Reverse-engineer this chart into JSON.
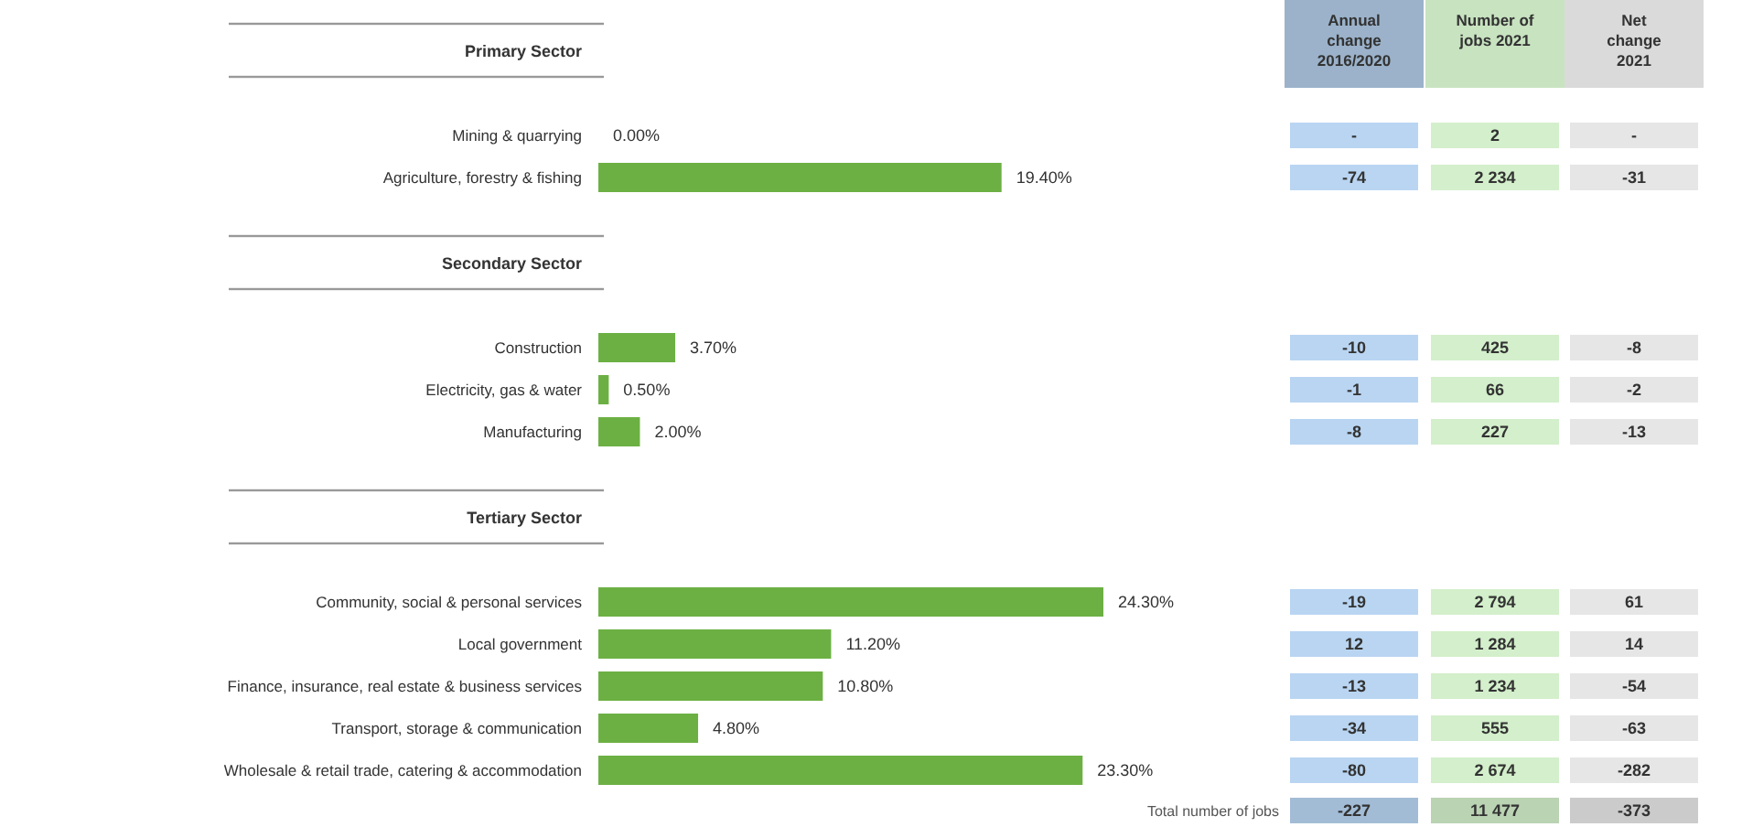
{
  "chart_data": [
    {
      "type": "bar",
      "orientation": "horizontal",
      "color": "#6cb044",
      "categories": [
        "Primary Sector",
        "Mining & quarrying",
        "Agriculture, forestry & fishing",
        "Secondary Sector",
        "Construction",
        "Electricity, gas & water",
        "Manufacturing",
        "Tertiary Sector",
        "Community, social & personal services",
        "Local government",
        "Finance, insurance, real estate & business services",
        "Transport, storage & communication",
        "Wholesale & retail trade, catering & accommodation"
      ],
      "values": [
        null,
        0,
        19.4,
        null,
        3.7,
        0.5,
        2.0,
        null,
        24.3,
        11.2,
        10.8,
        4.8,
        23.3
      ],
      "value_labels": [
        null,
        "0.00%",
        "19.40%",
        null,
        "3.70%",
        "0.50%",
        "2.00%",
        null,
        "24.30%",
        "11.20%",
        "10.80%",
        "4.80%",
        "23.30%"
      ]
    },
    {
      "type": "other",
      "annotations": [
        "Annual change 2016/2020",
        "Number of jobs 2021",
        "Net change 2021",
        "-",
        "2",
        "-",
        "-74",
        "2 234",
        "-31",
        "-10",
        "425",
        "-8",
        "-1",
        "66",
        "-2",
        "-8",
        "227",
        "-13",
        "-19",
        "2 794",
        "61",
        "12",
        "1 284",
        "14",
        "-13",
        "1 234",
        "-54",
        "-34",
        "555",
        "-63",
        "-80",
        "2 674",
        "-282",
        "Total number of jobs",
        "-227",
        "11 477",
        "-373"
      ]
    }
  ]
}
